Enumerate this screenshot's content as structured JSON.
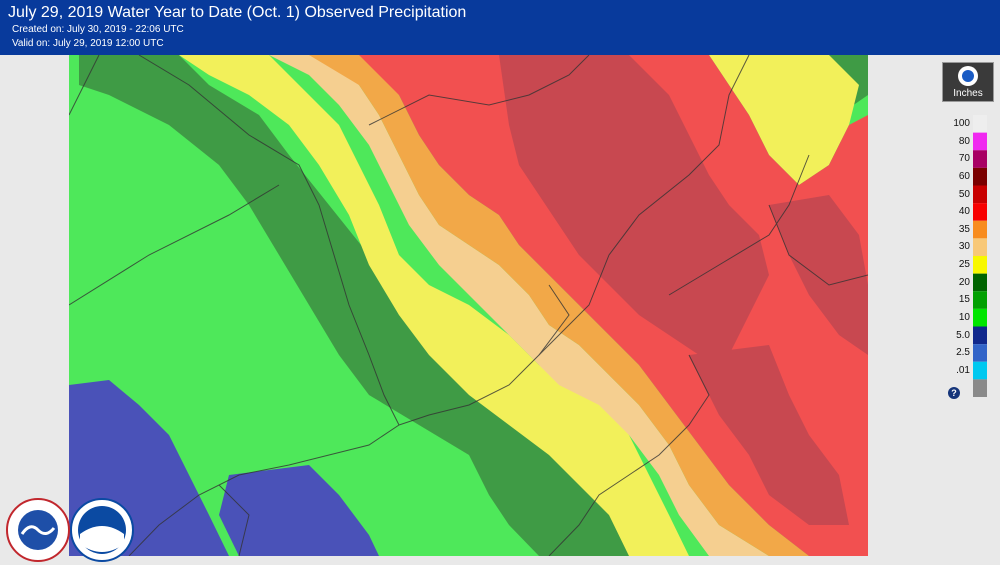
{
  "header": {
    "title": "July 29, 2019 Water Year to Date (Oct. 1) Observed Precipitation",
    "created": "Created on: July 30, 2019 - 22:06 UTC",
    "valid": "Valid on: July 29, 2019 12:00 UTC"
  },
  "legend": {
    "unit": "Inches",
    "help": "?",
    "items": [
      {
        "label": "100",
        "color": "#eeeeee"
      },
      {
        "label": "80",
        "color": "#f028f0"
      },
      {
        "label": "70",
        "color": "#a80064"
      },
      {
        "label": "60",
        "color": "#7a0000"
      },
      {
        "label": "50",
        "color": "#c80000"
      },
      {
        "label": "40",
        "color": "#f80000"
      },
      {
        "label": "35",
        "color": "#f88c1e"
      },
      {
        "label": "30",
        "color": "#f8c878"
      },
      {
        "label": "25",
        "color": "#f8f800"
      },
      {
        "label": "20",
        "color": "#006400"
      },
      {
        "label": "15",
        "color": "#00a000"
      },
      {
        "label": "10",
        "color": "#00e600"
      },
      {
        "label": "5.0",
        "color": "#10288c"
      },
      {
        "label": "2.5",
        "color": "#3264c8"
      },
      {
        "label": ".01",
        "color": "#00c8f0"
      },
      {
        "label": "",
        "color": "#8a8a8a"
      }
    ]
  },
  "logos": {
    "nws": "nws-logo",
    "noaa": "noaa-logo"
  }
}
